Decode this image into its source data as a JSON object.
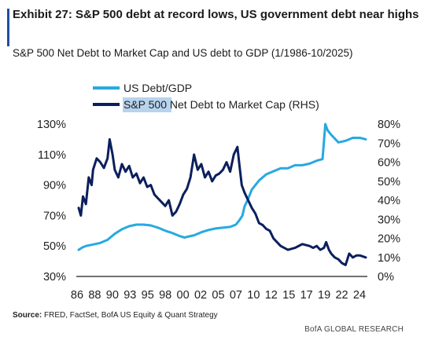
{
  "header": {
    "title": "Exhibit 27: S&P 500 debt at record lows, US government debt near highs",
    "subtitle": "S&P 500 Net Debt to Market Cap and US debt to GDP (1/1986-10/2025)"
  },
  "source": {
    "label": "Source:",
    "text": " FRED, FactSet, BofA US Equity & Quant Strategy"
  },
  "footer": {
    "brand": "BofA GLOBAL RESEARCH"
  },
  "colors": {
    "us_debt_gdp": "#27a9e1",
    "sp500_net_debt": "#0b1f5c",
    "accent": "#1f4fa0",
    "legend_highlight": "#b7d3ee"
  },
  "chart_data": {
    "type": "line",
    "title": "",
    "xlabel": "",
    "ylabel_left": "",
    "ylabel_right": "",
    "x_ticks": [
      "86",
      "88",
      "90",
      "93",
      "95",
      "98",
      "00",
      "02",
      "05",
      "07",
      "10",
      "12",
      "15",
      "17",
      "19",
      "22",
      "24"
    ],
    "x_range": [
      1986,
      2025.8
    ],
    "y_left": {
      "range": [
        30,
        130
      ],
      "ticks": [
        "30%",
        "50%",
        "70%",
        "90%",
        "110%",
        "130%"
      ]
    },
    "y_right": {
      "range": [
        0,
        80
      ],
      "ticks": [
        "0%",
        "10%",
        "20%",
        "30%",
        "40%",
        "50%",
        "60%",
        "70%",
        "80%"
      ]
    },
    "legend": [
      "US Debt/GDP",
      "S&P 500 Net Debt to Market Cap (RHS)"
    ],
    "legend_placement": "top-left",
    "grid": false,
    "series": [
      {
        "name": "US Debt/GDP",
        "axis": "left",
        "x": [
          1986,
          1986.5,
          1987,
          1988,
          1989,
          1990,
          1991,
          1992,
          1993,
          1994,
          1995,
          1996,
          1997,
          1998,
          1999,
          2000,
          2000.7,
          2001,
          2002,
          2003,
          2004,
          2005,
          2006,
          2007,
          2007.8,
          2008.3,
          2008.7,
          2009,
          2009.5,
          2010,
          2011,
          2012,
          2013,
          2014,
          2015,
          2016,
          2017,
          2018,
          2019,
          2019.8,
          2020.2,
          2020.5,
          2021,
          2022,
          2023,
          2024,
          2025,
          2025.8
        ],
        "values": [
          47.5,
          49,
          50,
          51,
          52,
          54,
          58,
          61,
          63,
          64,
          64,
          63.5,
          62,
          60,
          58.5,
          56.5,
          55.5,
          56,
          57,
          59,
          60.5,
          61.5,
          62,
          62.5,
          64,
          67,
          70,
          76,
          81,
          87,
          93,
          97,
          99,
          101,
          101,
          103,
          103,
          104,
          106,
          107,
          130,
          126,
          123,
          118,
          119,
          121,
          121,
          120
        ]
      },
      {
        "name": "S&P 500 Net Debt to Market Cap (RHS)",
        "axis": "right",
        "x": [
          1986,
          1986.3,
          1986.6,
          1987,
          1987.4,
          1987.8,
          1988,
          1988.5,
          1989,
          1989.5,
          1990,
          1990.3,
          1990.7,
          1991,
          1991.5,
          1992,
          1992.5,
          1993,
          1993.5,
          1994,
          1994.5,
          1995,
          1995.5,
          1996,
          1996.5,
          1997,
          1997.5,
          1998,
          1998.5,
          1999,
          1999.5,
          2000,
          2000.5,
          2001,
          2001.5,
          2002,
          2002.5,
          2003,
          2003.5,
          2004,
          2004.5,
          2005,
          2005.5,
          2006,
          2006.5,
          2007,
          2007.5,
          2008,
          2008.3,
          2008.6,
          2009,
          2009.5,
          2010,
          2010.5,
          2011,
          2011.5,
          2012,
          2012.5,
          2013,
          2014,
          2015,
          2016,
          2017,
          2018,
          2018.5,
          2019,
          2019.5,
          2020,
          2020.3,
          2020.7,
          2021,
          2021.5,
          2022,
          2022.5,
          2023,
          2023.5,
          2024,
          2024.5,
          2025,
          2025.8
        ],
        "values": [
          36,
          32,
          42,
          38,
          52,
          48,
          56,
          62,
          60,
          57,
          62,
          72,
          64,
          56,
          52,
          59,
          55,
          58,
          52,
          54,
          49,
          52,
          47,
          48,
          43,
          41,
          39,
          37,
          40,
          32,
          34,
          38,
          43,
          46,
          52,
          64,
          56,
          59,
          52,
          55,
          50,
          53,
          54,
          56,
          60,
          55,
          64,
          68,
          58,
          48,
          44,
          40,
          36,
          33,
          28,
          27,
          25,
          24,
          20,
          16,
          14,
          15,
          17,
          16,
          15,
          16,
          14,
          15,
          18,
          14,
          12,
          10,
          9,
          7,
          6,
          12,
          10,
          11,
          11,
          10
        ]
      }
    ]
  }
}
